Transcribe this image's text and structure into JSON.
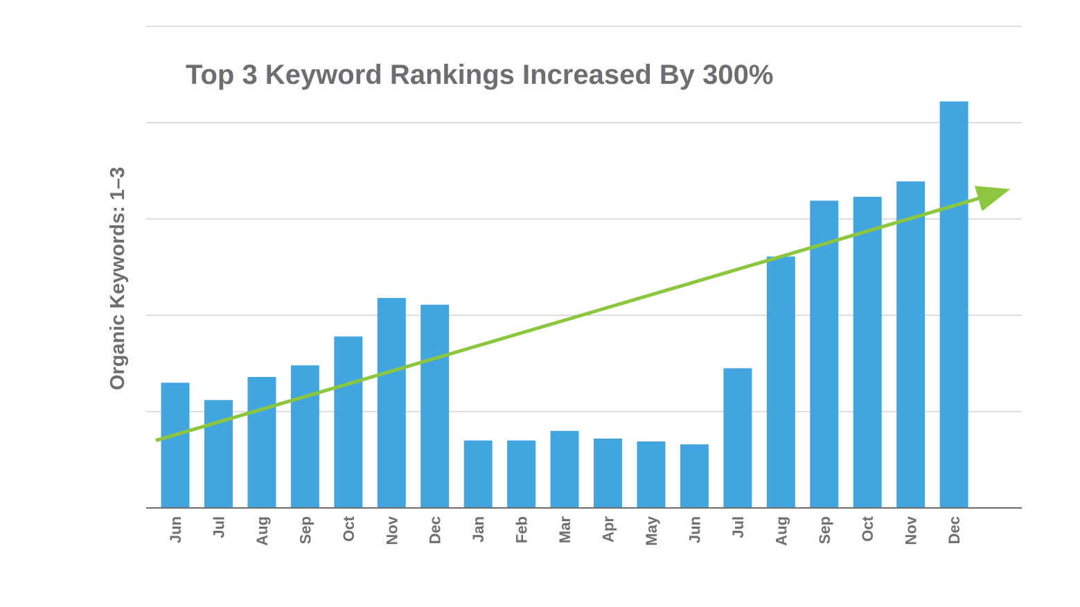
{
  "chart_data": {
    "type": "bar",
    "title": "Top 3 Keyword Rankings Increased By 300%",
    "xlabel": "",
    "ylabel": "Organic Keywords: 1–3",
    "categories": [
      "Jun",
      "Jul",
      "Aug",
      "Sep",
      "Oct",
      "Nov",
      "Dec",
      "Jan",
      "Feb",
      "Mar",
      "Apr",
      "May",
      "Jun",
      "Jul",
      "Aug",
      "Sep",
      "Oct",
      "Nov",
      "Dec"
    ],
    "values": [
      1.3,
      1.12,
      1.36,
      1.48,
      1.78,
      2.18,
      2.11,
      0.7,
      0.7,
      0.8,
      0.72,
      0.69,
      0.66,
      1.45,
      2.61,
      3.19,
      3.23,
      3.39,
      4.22
    ],
    "ylim": [
      0,
      5
    ],
    "y_ticks_labeled": false,
    "grid": true,
    "trend_arrow": {
      "from": [
        -0.45,
        0.7
      ],
      "to": [
        19.3,
        3.31
      ]
    },
    "colors": {
      "bar": "#42a5df",
      "trend": "#8cc63f",
      "grid": "#bdbdbd",
      "axis": "#6d6e71",
      "text": "#6d6e71"
    }
  }
}
